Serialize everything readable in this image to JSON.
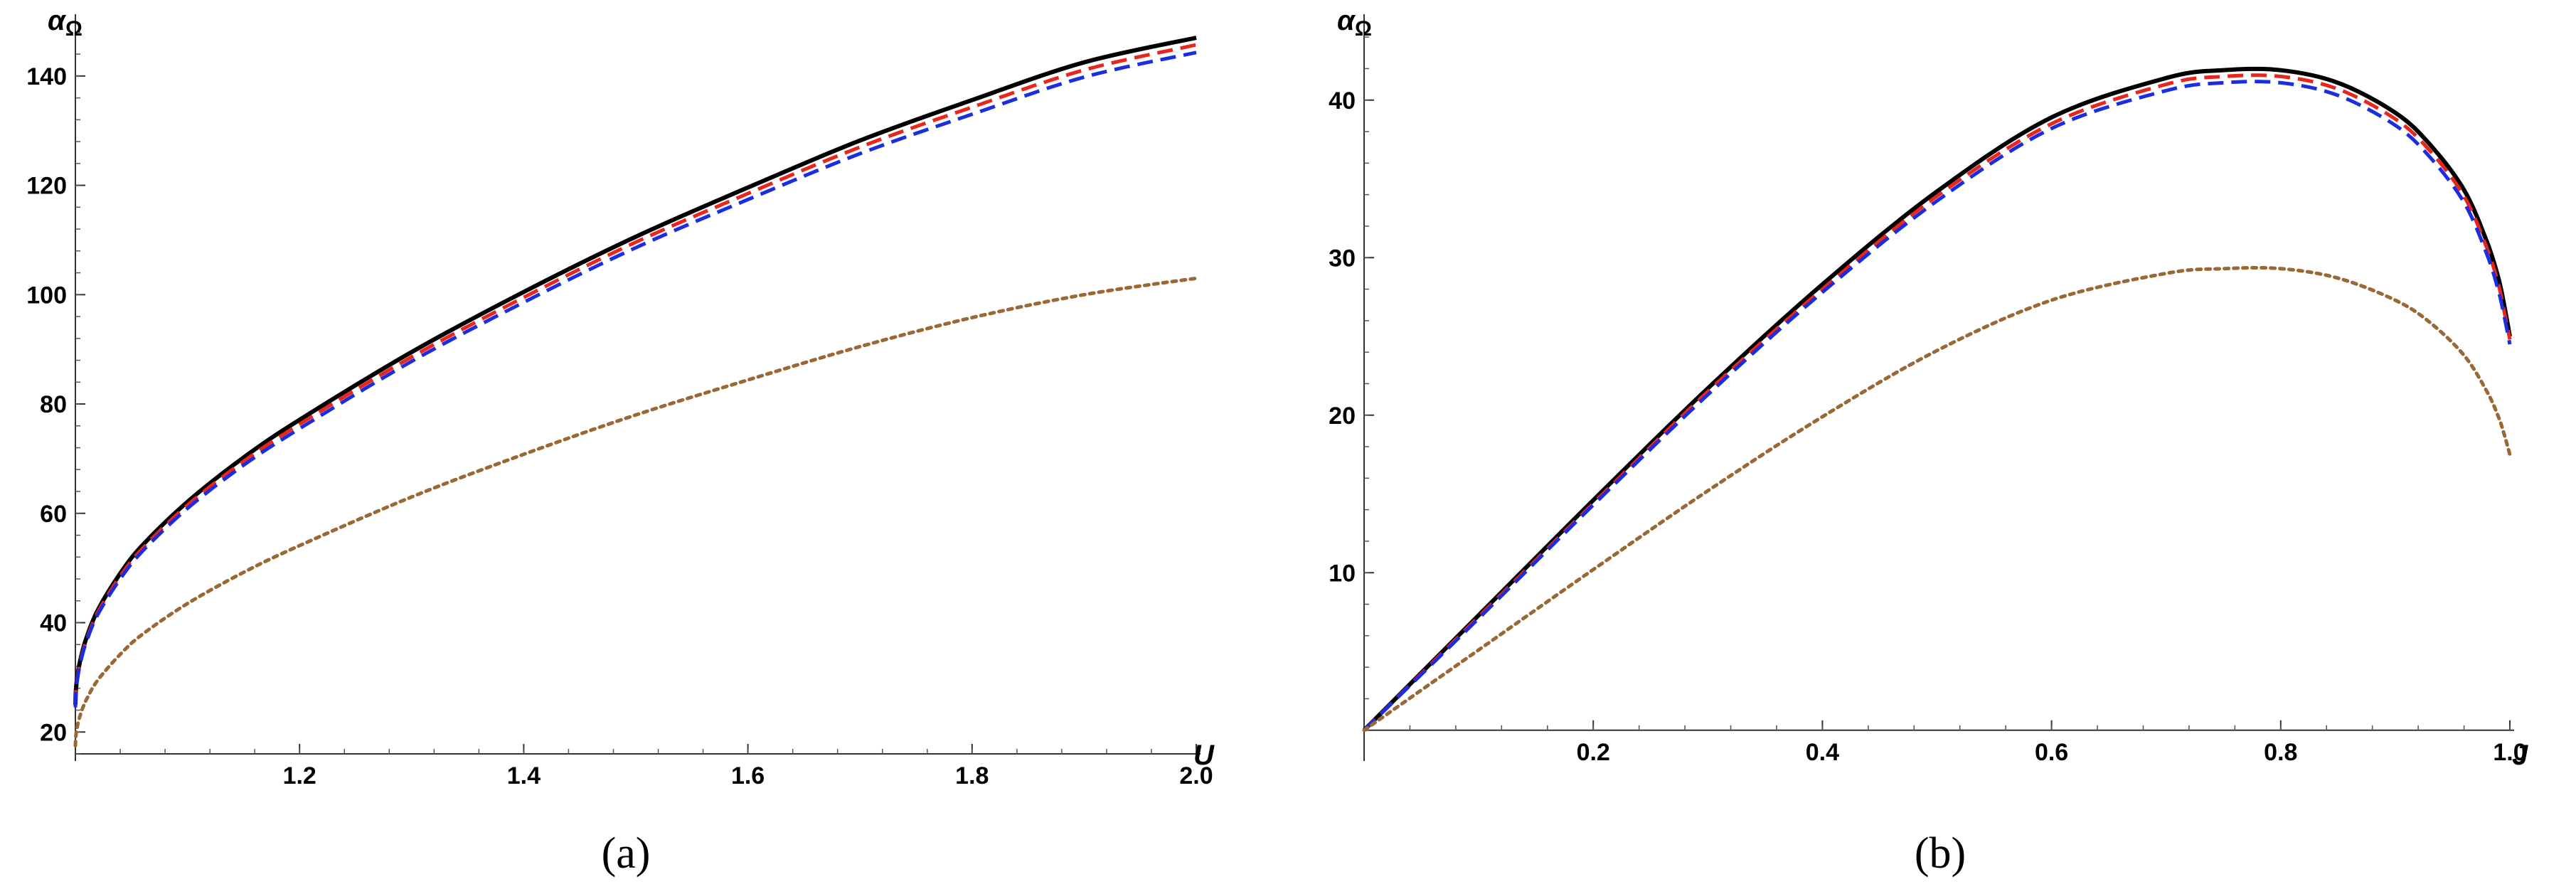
{
  "chart_data": [
    {
      "type": "line",
      "panel_label": "(a)",
      "xlabel": "U",
      "ylabel": "α",
      "ylabel_sub": "Ω",
      "xlim": [
        1.0,
        2.0
      ],
      "ylim": [
        16,
        150
      ],
      "x_ticks": [
        1.2,
        1.4,
        1.6,
        1.8,
        2.0
      ],
      "x_tick_labels": [
        "1.2",
        "1.4",
        "1.6",
        "1.8",
        "2.0"
      ],
      "y_ticks": [
        20,
        40,
        60,
        80,
        100,
        120,
        140
      ],
      "y_tick_labels": [
        "20",
        "40",
        "60",
        "80",
        "100",
        "120",
        "140"
      ],
      "grid": false,
      "series": [
        {
          "color": "#000000",
          "style": "solid",
          "x": [
            1.0,
            1.0005,
            1.002,
            1.005,
            1.01,
            1.02,
            1.04,
            1.06,
            1.1,
            1.15,
            1.2,
            1.3,
            1.4,
            1.5,
            1.6,
            1.7,
            1.8,
            1.9,
            2.0
          ],
          "y": [
            25.0,
            27.8,
            30.5,
            33.7,
            37.3,
            42.3,
            49.0,
            54.2,
            62.1,
            70.2,
            77.1,
            89.5,
            100.5,
            110.6,
            119.6,
            128.2,
            135.6,
            142.5,
            147.0
          ]
        },
        {
          "color": "#e8261c",
          "style": "dashed",
          "x": [
            1.0,
            1.0005,
            1.002,
            1.005,
            1.01,
            1.02,
            1.04,
            1.06,
            1.1,
            1.15,
            1.2,
            1.3,
            1.4,
            1.5,
            1.6,
            1.7,
            1.8,
            1.9,
            2.0
          ],
          "y": [
            24.8,
            27.6,
            30.2,
            33.4,
            36.9,
            41.9,
            48.5,
            53.6,
            61.5,
            69.5,
            76.3,
            88.6,
            99.5,
            109.6,
            118.5,
            127.0,
            134.3,
            141.1,
            145.7
          ]
        },
        {
          "color": "#1a2ee0",
          "style": "dashed",
          "x": [
            1.0,
            1.0005,
            1.002,
            1.005,
            1.01,
            1.02,
            1.04,
            1.06,
            1.1,
            1.15,
            1.2,
            1.3,
            1.4,
            1.5,
            1.6,
            1.7,
            1.8,
            1.9,
            2.0
          ],
          "y": [
            24.5,
            27.3,
            29.9,
            33.1,
            36.6,
            41.5,
            48.0,
            53.1,
            60.9,
            68.8,
            75.5,
            87.8,
            98.6,
            108.6,
            117.4,
            125.8,
            133.0,
            139.8,
            144.3
          ]
        },
        {
          "color": "#9a6834",
          "style": "dotted",
          "x": [
            1.0,
            1.0005,
            1.002,
            1.005,
            1.01,
            1.02,
            1.04,
            1.06,
            1.1,
            1.15,
            1.2,
            1.3,
            1.4,
            1.5,
            1.6,
            1.7,
            1.8,
            1.9,
            2.0
          ],
          "y": [
            17.5,
            19.4,
            21.3,
            23.5,
            26.0,
            29.5,
            34.2,
            37.9,
            43.5,
            49.2,
            54.1,
            63.0,
            70.8,
            78.0,
            84.4,
            90.5,
            95.8,
            100.0,
            103.0
          ]
        }
      ]
    },
    {
      "type": "line",
      "panel_label": "(b)",
      "xlabel": "J",
      "ylabel": "α",
      "ylabel_sub": "Ω",
      "xlim": [
        0.0,
        1.0
      ],
      "ylim": [
        -1.5,
        45
      ],
      "x_ticks": [
        0.2,
        0.4,
        0.6,
        0.8,
        1.0
      ],
      "x_tick_labels": [
        "0.2",
        "0.4",
        "0.6",
        "0.8",
        "1.0"
      ],
      "y_ticks": [
        10,
        20,
        30,
        40
      ],
      "y_tick_labels": [
        "10",
        "20",
        "30",
        "40"
      ],
      "grid": false,
      "series": [
        {
          "color": "#000000",
          "style": "solid",
          "x": [
            0.0,
            0.1,
            0.2,
            0.3,
            0.4,
            0.5,
            0.6,
            0.7,
            0.75,
            0.8,
            0.85,
            0.9,
            0.93,
            0.96,
            0.98,
            0.99,
            0.995,
            1.0
          ],
          "y": [
            0.0,
            7.3,
            14.6,
            21.7,
            28.3,
            34.2,
            38.9,
            41.4,
            41.9,
            41.9,
            41.1,
            39.2,
            37.2,
            34.3,
            31.0,
            28.7,
            27.0,
            25.0
          ]
        },
        {
          "color": "#e8261c",
          "style": "dashed",
          "x": [
            0.0,
            0.1,
            0.2,
            0.3,
            0.4,
            0.5,
            0.6,
            0.7,
            0.75,
            0.8,
            0.85,
            0.9,
            0.93,
            0.96,
            0.98,
            0.99,
            0.995,
            1.0
          ],
          "y": [
            0.0,
            7.2,
            14.4,
            21.5,
            28.0,
            33.9,
            38.5,
            41.0,
            41.5,
            41.5,
            40.7,
            38.8,
            36.8,
            33.9,
            30.6,
            28.3,
            26.6,
            24.8
          ]
        },
        {
          "color": "#1a2ee0",
          "style": "dashed",
          "x": [
            0.0,
            0.1,
            0.2,
            0.3,
            0.4,
            0.5,
            0.6,
            0.7,
            0.75,
            0.8,
            0.85,
            0.9,
            0.93,
            0.96,
            0.98,
            0.99,
            0.995,
            1.0
          ],
          "y": [
            0.0,
            7.1,
            14.3,
            21.3,
            27.8,
            33.6,
            38.2,
            40.6,
            41.1,
            41.1,
            40.3,
            38.4,
            36.4,
            33.5,
            30.2,
            27.9,
            26.3,
            24.5
          ]
        },
        {
          "color": "#9a6834",
          "style": "dotted",
          "x": [
            0.0,
            0.1,
            0.2,
            0.3,
            0.4,
            0.5,
            0.6,
            0.7,
            0.75,
            0.8,
            0.85,
            0.9,
            0.93,
            0.96,
            0.98,
            0.99,
            0.995,
            1.0
          ],
          "y": [
            0.0,
            5.1,
            10.2,
            15.2,
            19.9,
            24.1,
            27.3,
            29.0,
            29.3,
            29.3,
            28.7,
            27.3,
            25.9,
            23.8,
            21.5,
            19.9,
            18.8,
            17.5
          ]
        }
      ]
    }
  ]
}
